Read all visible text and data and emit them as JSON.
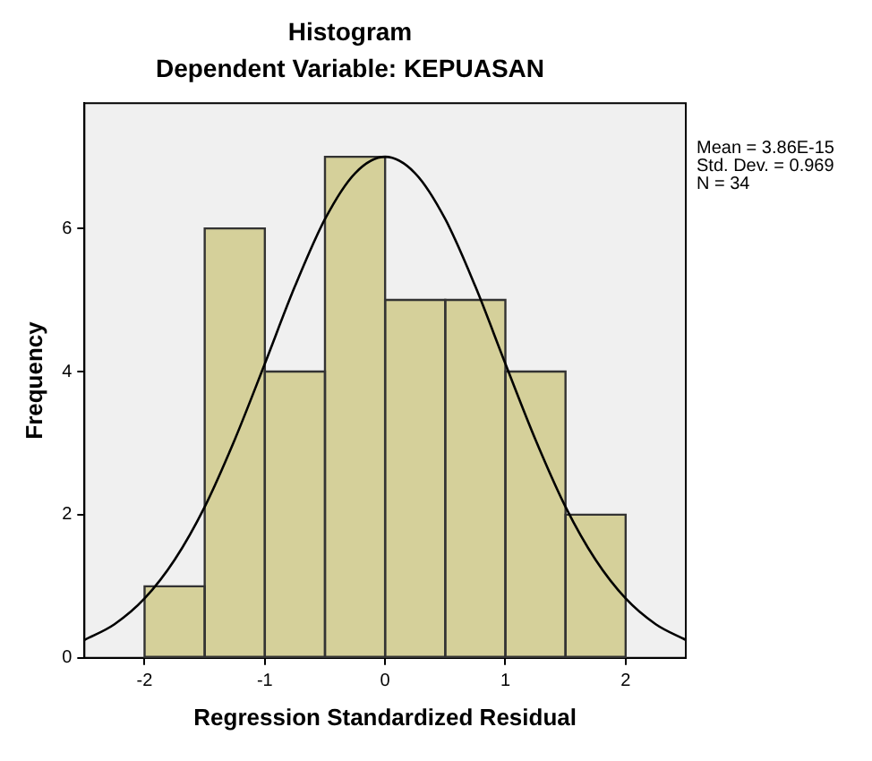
{
  "chart_data": {
    "type": "histogram",
    "title": "Histogram",
    "subtitle": "Dependent Variable: KEPUASAN",
    "xlabel": "Regression Standardized Residual",
    "ylabel": "Frequency",
    "bins": [
      -2,
      -1.5,
      -1,
      -0.5,
      0,
      0.5,
      1,
      1.5,
      2
    ],
    "values": [
      1,
      6,
      4,
      7,
      5,
      5,
      4,
      2
    ],
    "color": "#d5d09a",
    "series": [
      {
        "type": "line",
        "color": "#000000",
        "marker": "none",
        "x": [
          -2.5,
          -2.25,
          -2,
          -1.75,
          -1.5,
          -1.25,
          -1,
          -0.75,
          -0.5,
          -0.25,
          0,
          0.25,
          0.5,
          0.75,
          1,
          1.25,
          1.5,
          1.75,
          2,
          2.25,
          2.5
        ],
        "values": [
          0.25,
          0.47,
          0.83,
          1.37,
          2.11,
          3.05,
          4.11,
          5.19,
          6.13,
          6.77,
          7.0,
          6.77,
          6.13,
          5.19,
          4.11,
          3.05,
          2.11,
          1.37,
          0.83,
          0.47,
          0.25
        ]
      }
    ],
    "xlim": [
      -2.5,
      2.5
    ],
    "xticks": [
      -2,
      -1,
      0,
      1,
      2
    ],
    "ylim": [
      0,
      7.75
    ],
    "yticks": [
      0,
      2,
      4,
      6
    ],
    "grid": false,
    "legend": false,
    "annotations": [
      "Mean = 3.86E-15",
      "Std. Dev. = 0.969",
      "N = 34"
    ]
  }
}
